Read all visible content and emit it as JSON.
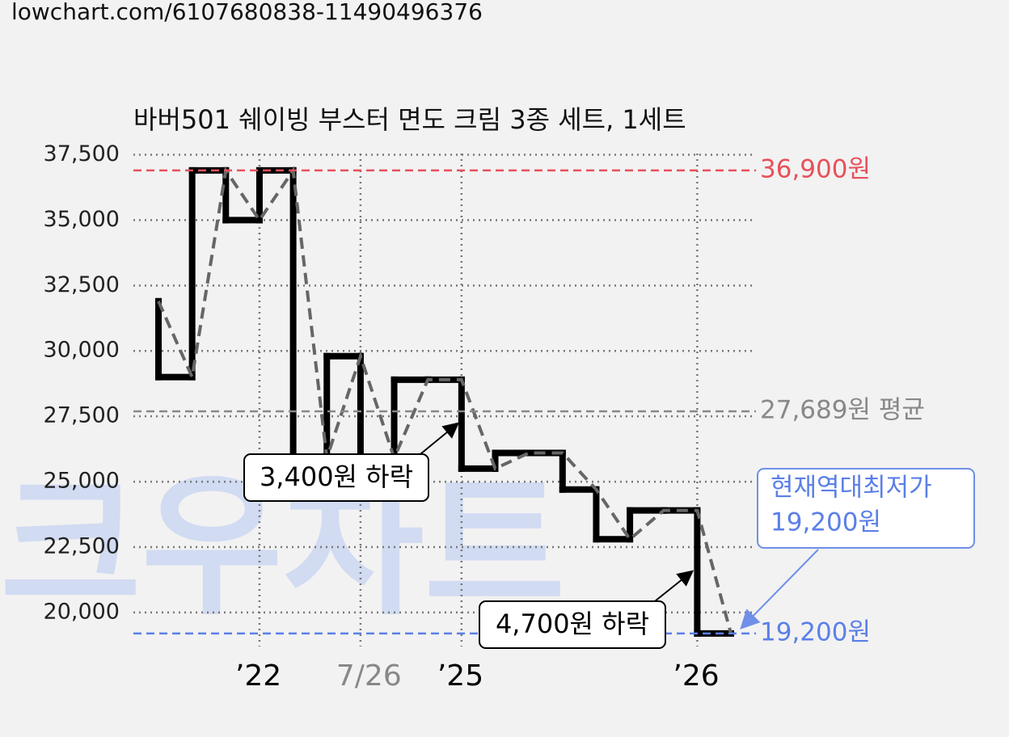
{
  "page_url": "lowchart.com/6107680838-11490496376",
  "chart_data": {
    "type": "step",
    "title": "바버501 쉐이빙 부스터 면도 크림 3종 세트, 1세트",
    "watermark": "크우차트",
    "categories": [
      null,
      null,
      null,
      "’22",
      null,
      null,
      "7/26",
      null,
      null,
      "’25",
      null,
      null,
      null,
      null,
      null,
      null,
      "’26",
      null
    ],
    "category_colors": [
      null,
      null,
      null,
      "#000000",
      null,
      null,
      "#888888",
      null,
      null,
      "#000000",
      null,
      null,
      null,
      null,
      null,
      null,
      "#000000",
      null
    ],
    "values": [
      31900,
      29000,
      36900,
      35000,
      36900,
      25900,
      29800,
      25900,
      28900,
      28900,
      25500,
      26100,
      26100,
      24700,
      22800,
      23900,
      23900,
      19200
    ],
    "color": "#000000",
    "trend_color": "#666666",
    "ylim": [
      18700,
      37700
    ],
    "yticks": [
      {
        "value": 20000,
        "label": "20,000"
      },
      {
        "value": 22500,
        "label": "22,500"
      },
      {
        "value": 25000,
        "label": "25,000"
      },
      {
        "value": 27500,
        "label": "27,500"
      },
      {
        "value": 30000,
        "label": "30,000"
      },
      {
        "value": 32500,
        "label": "32,500"
      },
      {
        "value": 35000,
        "label": "35,000"
      },
      {
        "value": 37500,
        "label": "37,500"
      }
    ],
    "grid": true,
    "reference_lines": [
      {
        "value": 36900,
        "label": "36,900원",
        "color": "#e8505b"
      },
      {
        "value": 27689,
        "label": "27,689원 평균",
        "color": "#888888"
      },
      {
        "value": 19200,
        "label": "19,200원",
        "color": "#5b7fe8"
      }
    ],
    "annotations": [
      "3,400원 하락",
      "4,700원 하락"
    ],
    "callout": {
      "lines": [
        "현재역대최저가",
        "19,200원"
      ],
      "color": "#5b7fe8"
    }
  }
}
